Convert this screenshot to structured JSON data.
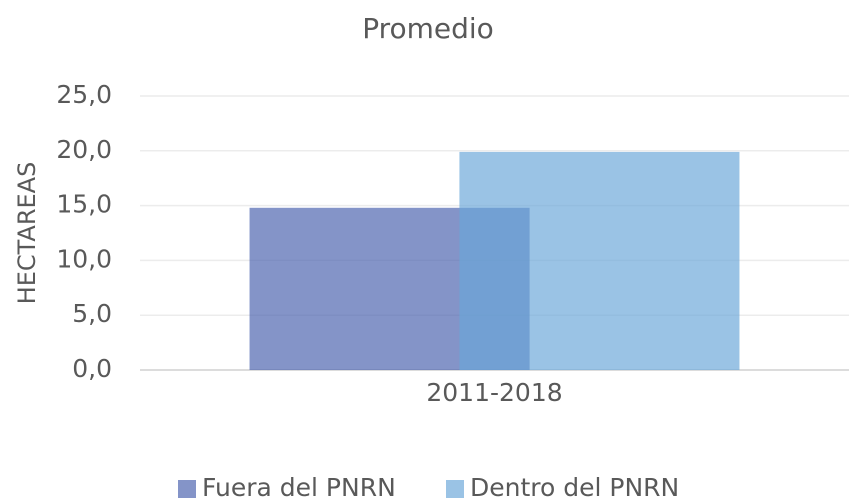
{
  "chart_data": {
    "type": "bar",
    "title": "Promedio",
    "ylabel": "HECTAREAS",
    "categories": [
      "2011-2018"
    ],
    "series": [
      {
        "name": "Fuera del PNRN",
        "color": "#4a62ae",
        "values": [
          14.8
        ]
      },
      {
        "name": "Dentro del PNRN",
        "color": "#6aa7d9",
        "values": [
          19.9
        ]
      }
    ],
    "ylim": [
      0,
      25
    ],
    "yticks": [
      {
        "value": 0,
        "label": "0,0"
      },
      {
        "value": 5,
        "label": "5,0"
      },
      {
        "value": 10,
        "label": "10,0"
      },
      {
        "value": 15,
        "label": "15,0"
      },
      {
        "value": 20,
        "label": "20,0"
      },
      {
        "value": 25,
        "label": "25,0"
      }
    ],
    "grid": true,
    "legend": "bottom"
  }
}
